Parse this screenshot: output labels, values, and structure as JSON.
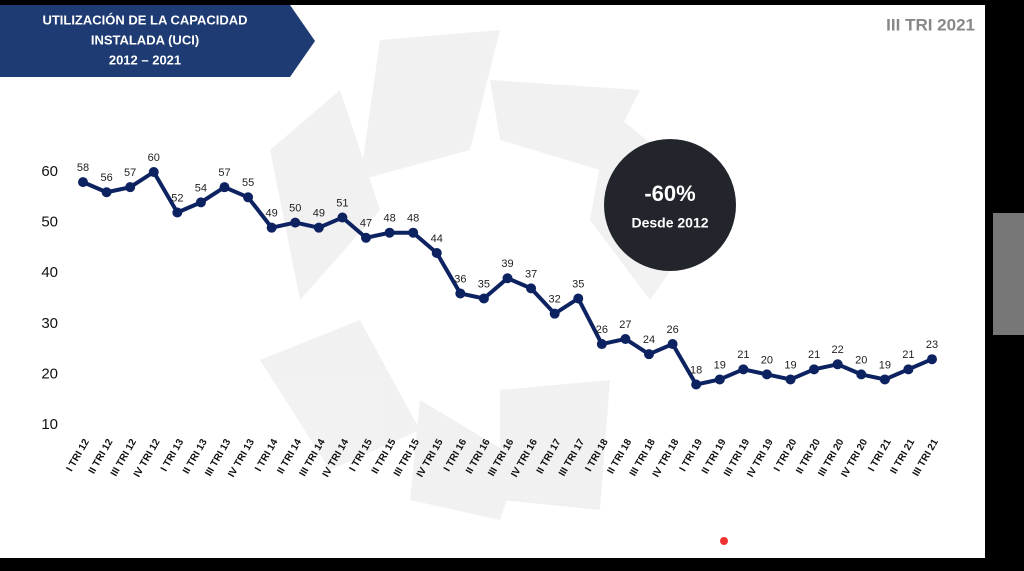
{
  "chart_data": {
    "type": "line",
    "title": [
      "UTILIZACIÓN DE LA CAPACIDAD",
      "INSTALADA (UCI)",
      "2012 – 2021"
    ],
    "subtitle": "III TRI 2021",
    "annotation": [
      "-60%",
      "Desde 2012"
    ],
    "categories": [
      "I TRI 12",
      "II TRI 12",
      "III TRI 12",
      "IV TRI 12",
      "I TRI 13",
      "II TRI 13",
      "III TRI 13",
      "IV TRI 13",
      "I TRI 14",
      "II TRI 14",
      "III TRI 14",
      "IV TRI 14",
      "I TRI 15",
      "II TRI 15",
      "III TRI 15",
      "IV TRI 15",
      "I TRI 16",
      "II TRI 16",
      "III TRI 16",
      "IV TRI 16",
      "II TRI 17",
      "III TRI 17",
      "I TRI 18",
      "II TRI 18",
      "III TRI 18",
      "IV TRI 18",
      "I TRI 19",
      "II TRI 19",
      "III TRI 19",
      "IV TRI 19",
      "I TRI 20",
      "II TRI 20",
      "III TRI 20",
      "IV TRI 20",
      "I TRI 21",
      "II TRI 21",
      "III TRI 21"
    ],
    "values": [
      58,
      56,
      57,
      60,
      52,
      54,
      57,
      55,
      49,
      50,
      49,
      51,
      47,
      48,
      48,
      44,
      36,
      35,
      39,
      37,
      32,
      35,
      26,
      27,
      24,
      26,
      18,
      19,
      21,
      20,
      19,
      21,
      22,
      20,
      19,
      21,
      23
    ],
    "color": "#0d2260",
    "ylim": [
      10,
      60
    ],
    "yticks": [
      10,
      20,
      30,
      40,
      50,
      60
    ]
  }
}
